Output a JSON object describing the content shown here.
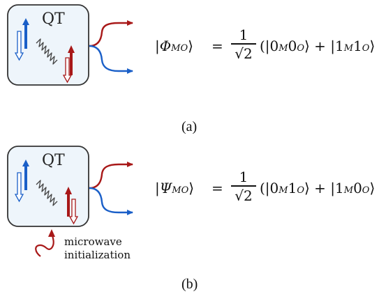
{
  "panel_a": {
    "box_label": "QT",
    "state_lhs": {
      "pre": "|",
      "symbol": "Φ",
      "sub": "MO",
      "post": "⟩"
    },
    "equals": "=",
    "frac_num": "1",
    "frac_den": "√2",
    "rhs": {
      "t1": {
        "open": "(|0",
        "s1": "M",
        "mid": "0",
        "s2": "O",
        "close": "⟩"
      },
      "plus": "+",
      "t2": {
        "open": "|1",
        "s1": "M",
        "mid": "1",
        "s2": "O",
        "close": "⟩"
      }
    },
    "caption": "(a)"
  },
  "panel_b": {
    "box_label": "QT",
    "state_lhs": {
      "pre": "|",
      "symbol": "Ψ",
      "sub": "MO",
      "post": "⟩"
    },
    "equals": "=",
    "frac_num": "1",
    "frac_den": "√2",
    "rhs": {
      "t1": {
        "open": "(|0",
        "s1": "M",
        "mid": "1",
        "s2": "O",
        "close": "⟩"
      },
      "plus": "+",
      "t2": {
        "open": "|1",
        "s1": "M",
        "mid": "0",
        "s2": "O",
        "close": "⟩"
      }
    },
    "microwave_line1": "microwave",
    "microwave_line2": "initialization",
    "caption": "(b)"
  },
  "colors": {
    "box_fill": "#eef5fb",
    "box_stroke": "#333333",
    "spin_blue": "#1a5fc8",
    "spin_red": "#a81818",
    "photon": "#444444"
  }
}
